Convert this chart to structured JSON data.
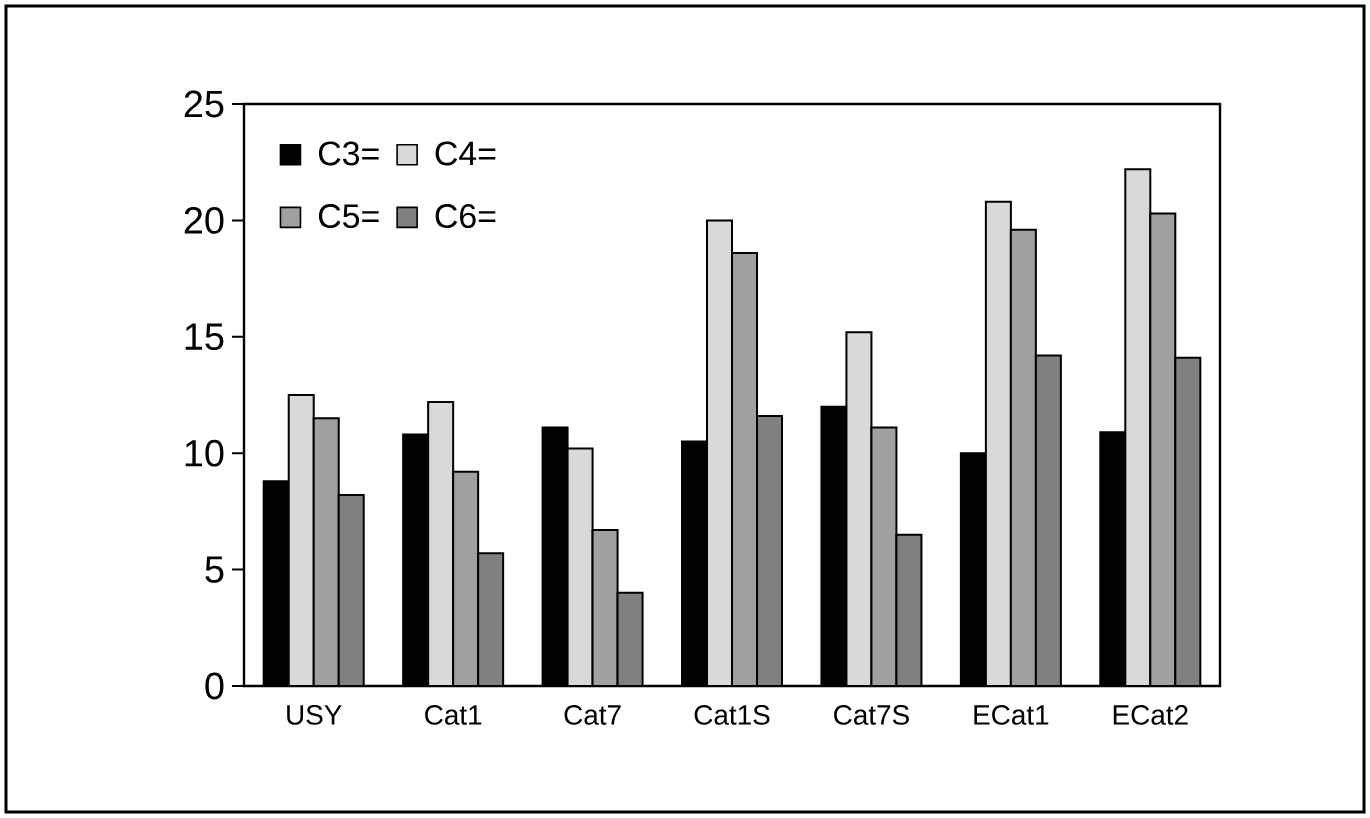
{
  "chart_data": {
    "type": "bar",
    "categories": [
      "USY",
      "Cat1",
      "Cat7",
      "Cat1S",
      "Cat7S",
      "ECat1",
      "ECat2"
    ],
    "series": [
      {
        "name": "C3=",
        "color": "#000000",
        "values": [
          8.8,
          10.8,
          11.1,
          10.5,
          12.0,
          10.0,
          10.9
        ]
      },
      {
        "name": "C4=",
        "color": "#d9d9d9",
        "values": [
          12.5,
          12.2,
          10.2,
          20.0,
          15.2,
          20.8,
          22.2
        ]
      },
      {
        "name": "C5=",
        "color": "#a0a0a0",
        "values": [
          11.5,
          9.2,
          6.7,
          18.6,
          11.1,
          19.6,
          20.3
        ]
      },
      {
        "name": "C6=",
        "color": "#808080",
        "values": [
          8.2,
          5.7,
          4.0,
          11.6,
          6.5,
          14.2,
          14.1
        ]
      }
    ],
    "ylim": [
      0,
      25
    ],
    "yticks": [
      0,
      5,
      10,
      15,
      20,
      25
    ],
    "grid": false,
    "legend": "top left"
  }
}
